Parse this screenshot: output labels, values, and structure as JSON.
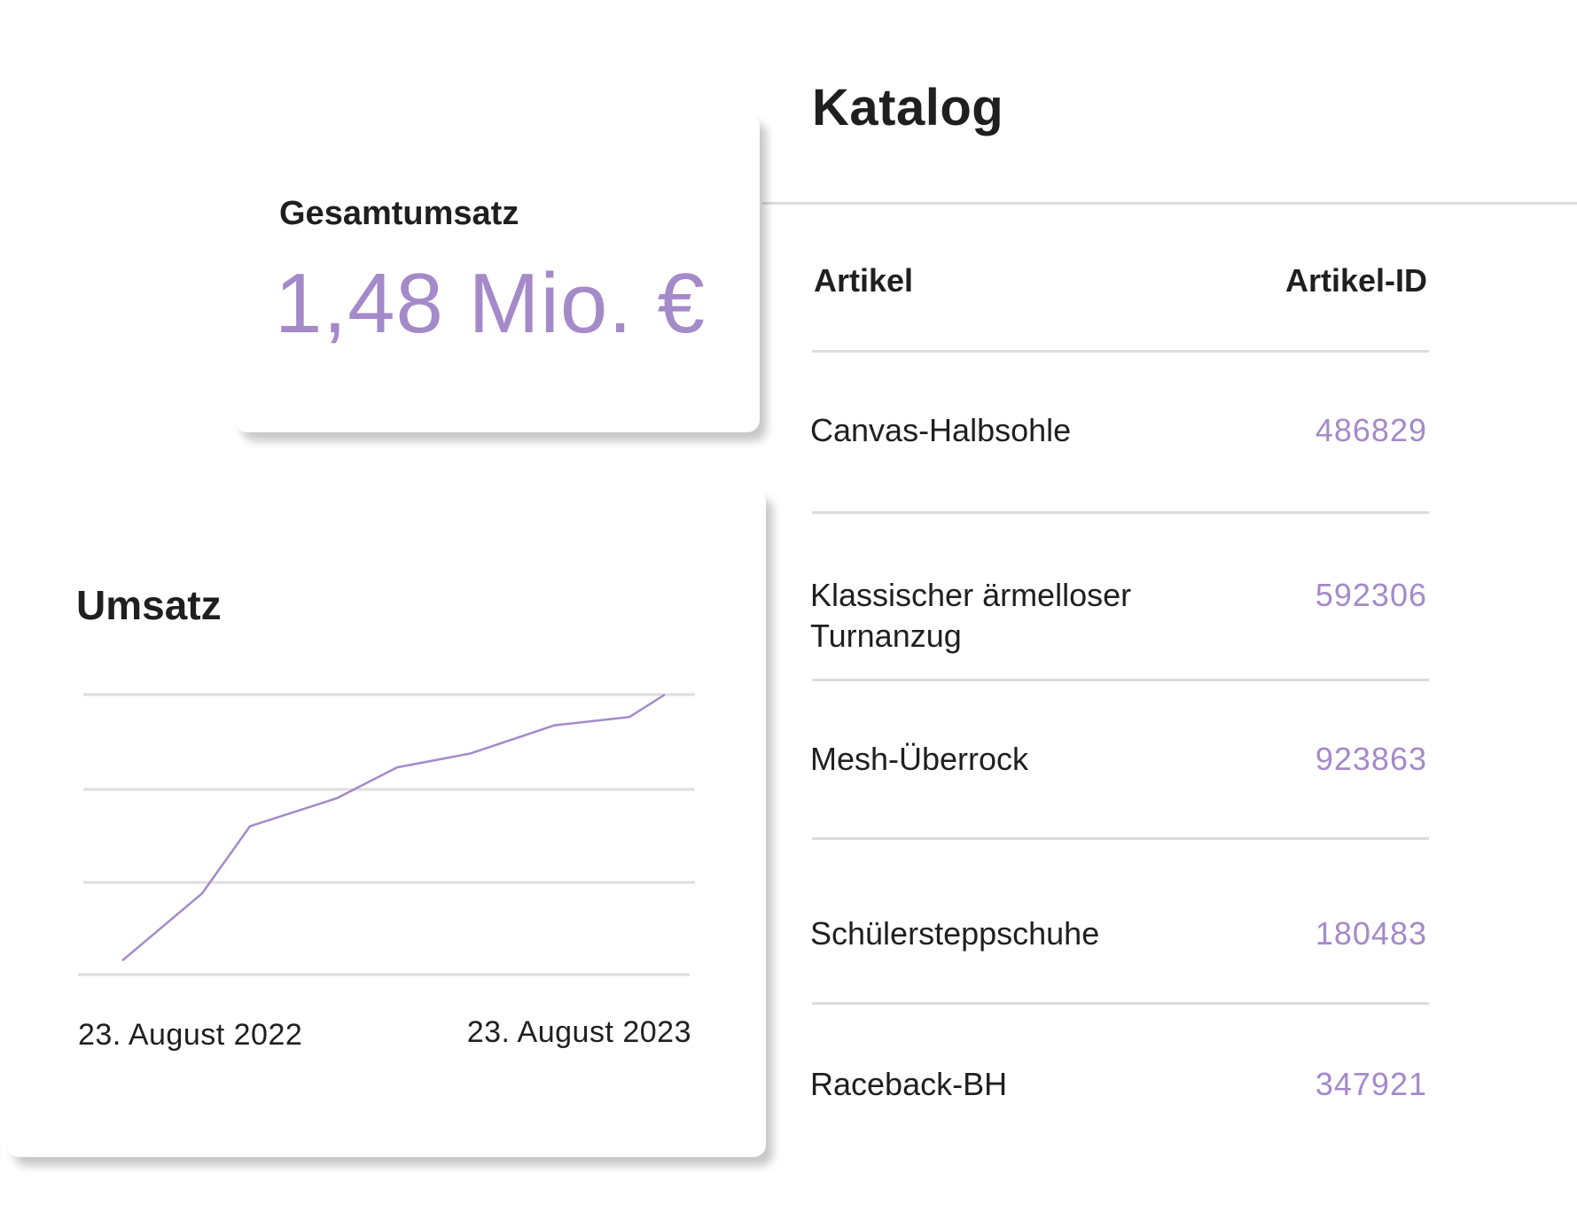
{
  "catalog": {
    "title": "Katalog",
    "columns": {
      "name": "Artikel",
      "id": "Artikel-ID"
    },
    "rows": [
      {
        "name": "Canvas-Halbsohle",
        "id": "486829"
      },
      {
        "name": "Klassischer ärmelloser Turnanzug",
        "id": "592306"
      },
      {
        "name": "Mesh-Überrock",
        "id": "923863"
      },
      {
        "name": "Schülersteppschuhe",
        "id": "180483"
      },
      {
        "name": "Raceback-BH",
        "id": "347921"
      }
    ]
  },
  "kpi": {
    "label": "Gesamtumsatz",
    "value": "1,48 Mio. €"
  },
  "chart": {
    "title": "Umsatz"
  },
  "chart_data": {
    "type": "line",
    "title": "Umsatz",
    "x_labels": [
      "23. August 2022",
      "23. August 2023"
    ],
    "values": [
      0.05,
      0.29,
      0.53,
      0.63,
      0.74,
      0.79,
      0.89,
      0.92,
      1.0
    ],
    "ylim": [
      0,
      1.0
    ],
    "grid": true,
    "legend": "none",
    "line_color": "#a48ac9"
  },
  "colors": {
    "accent": "#a48ac9",
    "text": "#1f1f1f",
    "divider": "#dcdcdc"
  }
}
